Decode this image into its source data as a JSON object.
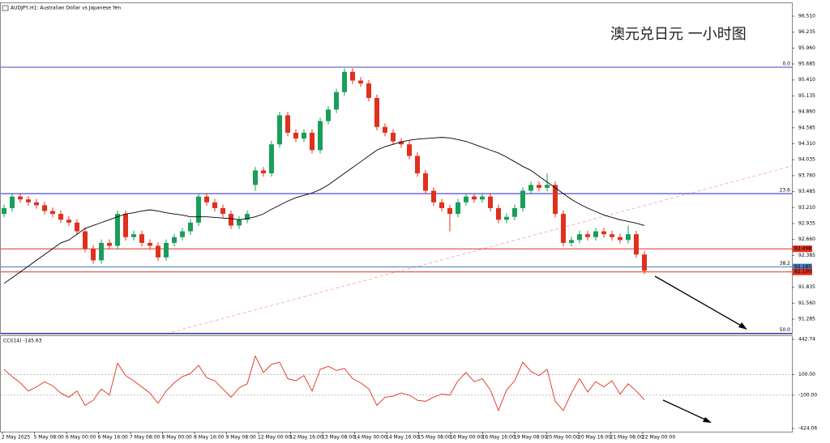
{
  "chart_data": {
    "type": "candlestick",
    "title": "AUDJPY,H1: Australian Dollar vs Japanese Yen",
    "annotation": "澳元兑日元 一小时图",
    "up_color": "#1a9e5a",
    "down_color": "#e0301e",
    "candles": [
      [
        93.1,
        93.26,
        93.04,
        93.2
      ],
      [
        93.2,
        93.46,
        93.14,
        93.4
      ],
      [
        93.4,
        93.46,
        93.29,
        93.35
      ],
      [
        93.35,
        93.41,
        93.24,
        93.3
      ],
      [
        93.3,
        93.36,
        93.19,
        93.25
      ],
      [
        93.25,
        93.31,
        93.09,
        93.15
      ],
      [
        93.15,
        93.21,
        93.04,
        93.1
      ],
      [
        93.1,
        93.16,
        92.94,
        93.0
      ],
      [
        93.0,
        93.06,
        92.89,
        92.95
      ],
      [
        92.95,
        93.01,
        92.74,
        92.8
      ],
      [
        92.8,
        92.86,
        92.44,
        92.5
      ],
      [
        92.5,
        92.56,
        92.24,
        92.3
      ],
      [
        92.3,
        92.66,
        92.24,
        92.6
      ],
      [
        92.6,
        92.66,
        92.49,
        92.55
      ],
      [
        92.55,
        93.16,
        92.49,
        93.1
      ],
      [
        93.1,
        93.16,
        92.64,
        92.7
      ],
      [
        92.7,
        92.81,
        92.64,
        92.75
      ],
      [
        92.75,
        92.81,
        92.54,
        92.6
      ],
      [
        92.6,
        92.66,
        92.49,
        92.55
      ],
      [
        92.55,
        92.61,
        92.29,
        92.35
      ],
      [
        92.35,
        92.66,
        92.29,
        92.6
      ],
      [
        92.6,
        92.76,
        92.54,
        92.7
      ],
      [
        92.7,
        92.86,
        92.64,
        92.8
      ],
      [
        92.8,
        93.01,
        92.74,
        92.95
      ],
      [
        92.95,
        93.46,
        92.89,
        93.4
      ],
      [
        93.4,
        93.46,
        93.24,
        93.3
      ],
      [
        93.3,
        93.36,
        93.14,
        93.2
      ],
      [
        93.2,
        93.26,
        93.04,
        93.1
      ],
      [
        93.1,
        93.16,
        92.84,
        92.9
      ],
      [
        92.9,
        93.06,
        92.84,
        93.0
      ],
      [
        93.0,
        93.16,
        92.94,
        93.1
      ],
      [
        93.6,
        93.91,
        93.5,
        93.85
      ],
      [
        93.85,
        93.91,
        93.74,
        93.8
      ],
      [
        93.8,
        94.36,
        93.74,
        94.3
      ],
      [
        94.3,
        94.86,
        94.24,
        94.8
      ],
      [
        94.8,
        94.86,
        94.44,
        94.5
      ],
      [
        94.5,
        94.56,
        94.34,
        94.4
      ],
      [
        94.4,
        94.56,
        94.34,
        94.5
      ],
      [
        94.5,
        94.56,
        94.14,
        94.2
      ],
      [
        94.2,
        94.76,
        94.14,
        94.7
      ],
      [
        94.7,
        94.96,
        94.64,
        94.9
      ],
      [
        94.9,
        95.26,
        94.84,
        95.2
      ],
      [
        95.2,
        95.61,
        95.14,
        95.55
      ],
      [
        95.55,
        95.61,
        95.34,
        95.4
      ],
      [
        95.4,
        95.46,
        95.29,
        95.35
      ],
      [
        95.35,
        95.41,
        95.04,
        95.1
      ],
      [
        95.1,
        95.16,
        94.54,
        94.6
      ],
      [
        94.6,
        94.66,
        94.44,
        94.5
      ],
      [
        94.5,
        94.56,
        94.29,
        94.35
      ],
      [
        94.35,
        94.41,
        94.24,
        94.3
      ],
      [
        94.3,
        94.36,
        94.04,
        94.1
      ],
      [
        94.1,
        94.16,
        93.74,
        93.8
      ],
      [
        93.8,
        93.86,
        93.44,
        93.5
      ],
      [
        93.5,
        93.56,
        93.24,
        93.3
      ],
      [
        93.3,
        93.36,
        93.14,
        93.2
      ],
      [
        93.2,
        93.26,
        92.8,
        93.1
      ],
      [
        93.1,
        93.36,
        93.04,
        93.3
      ],
      [
        93.3,
        93.46,
        93.24,
        93.4
      ],
      [
        93.4,
        93.46,
        93.29,
        93.35
      ],
      [
        93.35,
        93.46,
        93.29,
        93.4
      ],
      [
        93.4,
        93.46,
        93.14,
        93.2
      ],
      [
        93.2,
        93.26,
        92.94,
        93.0
      ],
      [
        93.0,
        93.11,
        92.94,
        93.05
      ],
      [
        93.05,
        93.26,
        92.99,
        93.2
      ],
      [
        93.2,
        93.56,
        93.14,
        93.5
      ],
      [
        93.5,
        93.66,
        93.44,
        93.6
      ],
      [
        93.6,
        93.66,
        93.49,
        93.55
      ],
      [
        93.55,
        93.8,
        93.49,
        93.6
      ],
      [
        93.6,
        93.66,
        93.04,
        93.1
      ],
      [
        93.1,
        93.16,
        92.54,
        92.6
      ],
      [
        92.6,
        92.71,
        92.54,
        92.65
      ],
      [
        92.65,
        92.81,
        92.59,
        92.75
      ],
      [
        92.75,
        92.81,
        92.64,
        92.7
      ],
      [
        92.7,
        92.86,
        92.64,
        92.8
      ],
      [
        92.8,
        92.86,
        92.69,
        92.75
      ],
      [
        92.75,
        92.81,
        92.64,
        92.7
      ],
      [
        92.7,
        92.76,
        92.59,
        92.65
      ],
      [
        92.65,
        92.9,
        92.59,
        92.75
      ],
      [
        92.75,
        92.81,
        92.34,
        92.4
      ],
      [
        92.4,
        92.46,
        92.06,
        92.12
      ]
    ],
    "ma": {
      "color": "#000000",
      "values": [
        91.9,
        92.0,
        92.1,
        92.2,
        92.3,
        92.4,
        92.5,
        92.6,
        92.65,
        92.75,
        92.85,
        92.9,
        92.95,
        93.0,
        93.05,
        93.1,
        93.12,
        93.15,
        93.17,
        93.15,
        93.12,
        93.1,
        93.08,
        93.05,
        93.05,
        93.05,
        93.04,
        93.03,
        93.02,
        93.0,
        93.02,
        93.05,
        93.1,
        93.18,
        93.25,
        93.32,
        93.38,
        93.42,
        93.46,
        93.52,
        93.6,
        93.7,
        93.8,
        93.9,
        94.0,
        94.1,
        94.2,
        94.26,
        94.3,
        94.34,
        94.37,
        94.39,
        94.4,
        94.41,
        94.42,
        94.41,
        94.38,
        94.35,
        94.3,
        94.25,
        94.2,
        94.15,
        94.08,
        94.0,
        93.92,
        93.85,
        93.75,
        93.65,
        93.55,
        93.45,
        93.35,
        93.27,
        93.2,
        93.14,
        93.08,
        93.04,
        93.0,
        92.97,
        92.94,
        92.9
      ]
    },
    "ylim": [
      91.035,
      96.733
    ],
    "yticks": [
      {
        "value": 96.51,
        "label": "96.510"
      },
      96.235,
      {
        "value": 95.96,
        "label": "95.960"
      },
      95.685,
      {
        "value": 95.41,
        "label": "95.410"
      },
      95.135,
      {
        "value": 94.86,
        "label": "94.860"
      },
      94.585,
      {
        "value": 94.31,
        "label": "94.310"
      },
      94.035,
      {
        "value": 93.76,
        "label": "93.760"
      },
      93.485,
      {
        "value": 93.21,
        "label": "93.210"
      },
      92.935,
      {
        "value": 92.66,
        "label": "92.660"
      },
      92.385,
      {
        "value": 91.835,
        "label": "91.835"
      },
      {
        "value": 91.56,
        "label": "91.560"
      },
      91.285
    ],
    "xlabels": [
      "2 May 2025",
      "5 May 08:00",
      "6 May 00:00",
      "6 May 16:00",
      "7 May 08:00",
      "8 May 00:00",
      "8 May 16:00",
      "9 May 08:00",
      "12 May 00:00",
      "12 May 16:00",
      "13 May 08:00",
      "14 May 00:00",
      "14 May 16:00",
      "15 May 08:00",
      "16 May 00:00",
      "16 May 16:00",
      "19 May 08:00",
      "20 May 00:00",
      "20 May 16:00",
      "21 May 08:00",
      "22 May 00:00"
    ],
    "levels": [
      {
        "price": 95.63,
        "label": "0.0",
        "color": "#0000cc"
      },
      {
        "price": 93.45,
        "label": "23.6",
        "color": "#0000cc"
      },
      {
        "price": 92.185,
        "label": "38.2",
        "color": "#7799cc"
      },
      {
        "price": 91.04,
        "label": "50.0",
        "color": "#0000cc"
      }
    ],
    "price_marks": [
      {
        "value": 92.498,
        "color": "#e0301e"
      },
      {
        "value": 92.185,
        "color": "#4a7fc1"
      },
      {
        "value": {
          "value": 92.1,
          "label": "92.100"
        },
        "color": "#e0301e"
      }
    ],
    "cci": {
      "title": "CCI(14) -145.63",
      "color": "#e0301e",
      "values": [
        150,
        80,
        20,
        -60,
        -20,
        30,
        -10,
        -80,
        -120,
        -60,
        -200,
        -150,
        -40,
        -100,
        210,
        90,
        40,
        -20,
        -80,
        -180,
        -60,
        20,
        80,
        110,
        190,
        70,
        40,
        -40,
        -120,
        -30,
        10,
        280,
        120,
        200,
        220,
        60,
        40,
        90,
        -60,
        150,
        180,
        140,
        160,
        60,
        20,
        -40,
        -200,
        -120,
        -110,
        -80,
        -100,
        -150,
        -160,
        -120,
        -90,
        -100,
        40,
        120,
        30,
        60,
        -50,
        -250,
        -50,
        40,
        220,
        130,
        90,
        150,
        -160,
        -250,
        -80,
        60,
        -70,
        30,
        -20,
        40,
        -90,
        10,
        -60,
        -145.63
      ],
      "ylim": [
        -424.06,
        442.74
      ],
      "yticks": [
        442.74,
        {
          "value": 100,
          "label": "100.00"
        },
        {
          "value": -100,
          "label": "-100.00"
        },
        -424.06
      ]
    }
  }
}
